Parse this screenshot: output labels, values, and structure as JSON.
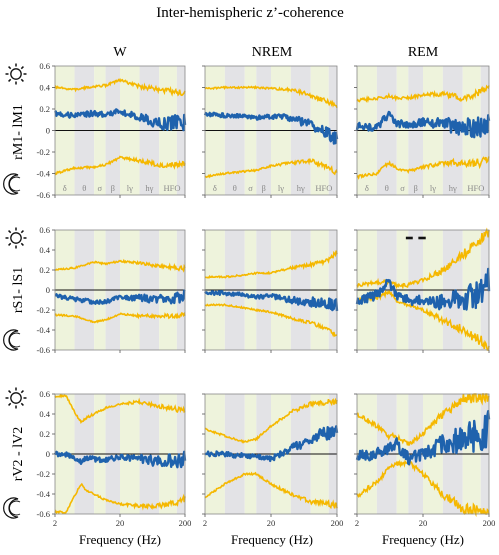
{
  "figure": {
    "title": "Inter-hemispheric z’-coherence",
    "columns": [
      "W",
      "NREM",
      "REM"
    ],
    "rows": [
      "rM1- lM1",
      "rS1- lS1",
      "rV2 - lV2"
    ],
    "xlabel": "Frequency (Hz)",
    "band_labels": [
      "δ",
      "θ",
      "σ",
      "β",
      "lγ",
      "hγ",
      "HFO"
    ],
    "x_ticks": [
      "2",
      "20",
      "200"
    ],
    "y_ticks": [
      "0.6",
      "0.4",
      "0.2",
      "0",
      "-0.2",
      "-0.4",
      "-0.6"
    ],
    "icons": [
      "sun-icon",
      "moon-icon"
    ]
  },
  "colors": {
    "mean_line": "#1f62ad",
    "ci_line": "#f5b800",
    "band_green": "#eef3dc",
    "band_gray": "#e3e3e6",
    "axis": "#555555"
  },
  "chart_data": {
    "type": "line",
    "x_scale": "log",
    "xlim": [
      2,
      200
    ],
    "ylim": [
      -0.6,
      0.6
    ],
    "xlabel": "Frequency (Hz)",
    "title": "Inter-hemispheric z’-coherence",
    "band_edges_hz": [
      2,
      4,
      8,
      12,
      20,
      40,
      80,
      150,
      200
    ],
    "panels": [
      {
        "row": "rM1- lM1",
        "col": "W",
        "x": [
          2,
          4,
          8,
          12,
          20,
          40,
          80,
          150,
          200
        ],
        "mean": [
          0.16,
          0.14,
          0.16,
          0.15,
          0.18,
          0.12,
          0.06,
          0.08,
          0.08
        ],
        "upper": [
          0.4,
          0.38,
          0.41,
          0.42,
          0.47,
          0.41,
          0.38,
          0.35,
          0.35
        ],
        "lower": [
          -0.4,
          -0.35,
          -0.34,
          -0.32,
          -0.25,
          -0.28,
          -0.32,
          -0.32,
          -0.3
        ],
        "noise": 0.025
      },
      {
        "row": "rM1- lM1",
        "col": "NREM",
        "x": [
          2,
          4,
          8,
          12,
          20,
          40,
          80,
          150,
          200
        ],
        "mean": [
          0.15,
          0.14,
          0.13,
          0.12,
          0.13,
          0.12,
          0.05,
          -0.03,
          -0.08
        ],
        "upper": [
          0.39,
          0.4,
          0.4,
          0.4,
          0.39,
          0.38,
          0.33,
          0.26,
          0.22
        ],
        "lower": [
          -0.43,
          -0.4,
          -0.38,
          -0.37,
          -0.33,
          -0.3,
          -0.28,
          -0.34,
          -0.4
        ],
        "noise": 0.02
      },
      {
        "row": "rM1- lM1",
        "col": "REM",
        "x": [
          2,
          4,
          6,
          8,
          12,
          20,
          40,
          80,
          150,
          200
        ],
        "mean": [
          0.04,
          0.03,
          0.15,
          0.07,
          0.05,
          0.08,
          0.06,
          0.03,
          0.02,
          0.05
        ],
        "upper": [
          0.28,
          0.3,
          0.32,
          0.3,
          0.3,
          0.33,
          0.34,
          0.3,
          0.36,
          0.38
        ],
        "lower": [
          -0.43,
          -0.4,
          -0.3,
          -0.35,
          -0.38,
          -0.34,
          -0.3,
          -0.3,
          -0.3,
          -0.28
        ],
        "noise": 0.035
      },
      {
        "row": "rS1- lS1",
        "col": "W",
        "x": [
          2,
          4,
          8,
          12,
          20,
          40,
          80,
          150,
          200
        ],
        "mean": [
          -0.06,
          -0.09,
          -0.12,
          -0.12,
          -0.07,
          -0.08,
          -0.09,
          -0.08,
          -0.06
        ],
        "upper": [
          0.2,
          0.22,
          0.28,
          0.26,
          0.29,
          0.27,
          0.24,
          0.22,
          0.22
        ],
        "lower": [
          -0.25,
          -0.26,
          -0.32,
          -0.3,
          -0.24,
          -0.26,
          -0.26,
          -0.26,
          -0.24
        ],
        "noise": 0.02
      },
      {
        "row": "rS1- lS1",
        "col": "NREM",
        "x": [
          2,
          4,
          8,
          12,
          20,
          40,
          80,
          150,
          200
        ],
        "mean": [
          -0.03,
          -0.03,
          -0.05,
          -0.07,
          -0.06,
          -0.1,
          -0.12,
          -0.14,
          -0.15
        ],
        "upper": [
          0.13,
          0.13,
          0.15,
          0.17,
          0.17,
          0.22,
          0.25,
          0.3,
          0.38
        ],
        "lower": [
          -0.15,
          -0.15,
          -0.18,
          -0.2,
          -0.22,
          -0.28,
          -0.33,
          -0.4,
          -0.45
        ],
        "noise": 0.02
      },
      {
        "row": "rS1- lS1",
        "col": "REM",
        "x": [
          2,
          4,
          6,
          8,
          12,
          20,
          40,
          80,
          150,
          200
        ],
        "mean": [
          -0.1,
          -0.05,
          0.08,
          -0.05,
          -0.1,
          -0.1,
          -0.12,
          -0.08,
          -0.05,
          0.08
        ],
        "upper": [
          0.05,
          0.08,
          0.08,
          0.05,
          0.05,
          0.1,
          0.2,
          0.35,
          0.5,
          0.6
        ],
        "lower": [
          -0.1,
          -0.08,
          -0.02,
          -0.1,
          -0.15,
          -0.2,
          -0.3,
          -0.4,
          -0.5,
          -0.58
        ],
        "noise": 0.05
      },
      {
        "row": "rV2 - lV2",
        "col": "W",
        "x": [
          2,
          3,
          4,
          5,
          6,
          8,
          12,
          20,
          40,
          80,
          150,
          200
        ],
        "mean": [
          0.0,
          0.0,
          -0.04,
          -0.08,
          -0.04,
          -0.05,
          -0.06,
          -0.03,
          -0.04,
          -0.08,
          -0.06,
          -0.05
        ],
        "upper": [
          0.58,
          0.58,
          0.42,
          0.32,
          0.36,
          0.4,
          0.46,
          0.5,
          0.52,
          0.48,
          0.45,
          0.45
        ],
        "lower": [
          -0.58,
          -0.58,
          -0.42,
          -0.3,
          -0.36,
          -0.4,
          -0.46,
          -0.5,
          -0.52,
          -0.52,
          -0.48,
          -0.45
        ],
        "noise": 0.025
      },
      {
        "row": "rV2 - lV2",
        "col": "NREM",
        "x": [
          2,
          4,
          8,
          12,
          20,
          40,
          80,
          150,
          200
        ],
        "mean": [
          0.0,
          0.0,
          -0.02,
          -0.03,
          -0.05,
          0.05,
          0.15,
          0.22,
          0.2
        ],
        "upper": [
          0.25,
          0.18,
          0.12,
          0.15,
          0.28,
          0.42,
          0.5,
          0.52,
          0.52
        ],
        "lower": [
          -0.43,
          -0.3,
          -0.2,
          -0.2,
          -0.3,
          -0.4,
          -0.48,
          -0.5,
          -0.52
        ],
        "noise": 0.025
      },
      {
        "row": "rV2 - lV2",
        "col": "REM",
        "x": [
          2,
          4,
          6,
          8,
          12,
          20,
          40,
          80,
          150,
          200
        ],
        "mean": [
          -0.02,
          0.0,
          0.05,
          0.1,
          -0.05,
          0.0,
          0.1,
          0.15,
          0.2,
          0.25
        ],
        "upper": [
          0.4,
          0.28,
          0.18,
          0.18,
          0.1,
          0.2,
          0.4,
          0.55,
          0.58,
          0.6
        ],
        "lower": [
          -0.42,
          -0.28,
          -0.15,
          -0.1,
          -0.08,
          -0.2,
          -0.4,
          -0.55,
          -0.58,
          -0.6
        ],
        "noise": 0.06
      }
    ],
    "significance_marks": [
      {
        "row": "rS1- lS1",
        "col": "REM",
        "y": 0.52,
        "x_ranges_hz": [
          [
            11,
            14
          ],
          [
            17,
            22
          ]
        ]
      }
    ]
  }
}
